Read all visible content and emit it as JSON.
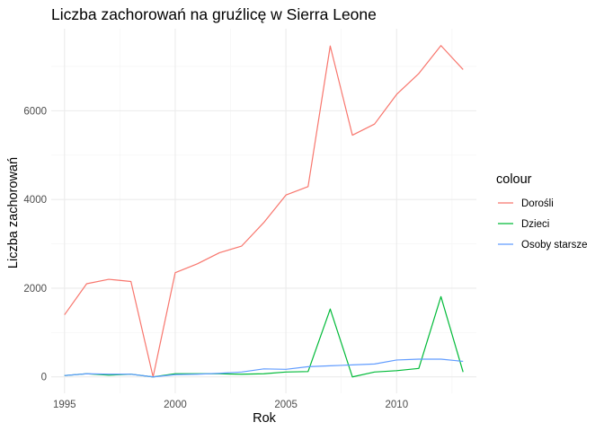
{
  "chart_data": {
    "type": "line",
    "title": "Liczba zachorowań na gruźlicę w Sierra Leone",
    "xlabel": "Rok",
    "ylabel": "Liczba zachorowań",
    "x": [
      1995,
      1996,
      1997,
      1998,
      1999,
      2000,
      2001,
      2002,
      2003,
      2004,
      2005,
      2006,
      2007,
      2008,
      2009,
      2010,
      2011,
      2012,
      2013
    ],
    "xlim": [
      1994.4,
      2013.6
    ],
    "ylim": [
      -370,
      7850
    ],
    "xticks": [
      1995,
      2000,
      2005,
      2010
    ],
    "yticks": [
      0,
      2000,
      4000,
      6000
    ],
    "grid": true,
    "legend": {
      "title": "colour",
      "placement": "right"
    },
    "series": [
      {
        "name": "Dorośli",
        "color": "#F8766D",
        "values": [
          1400,
          2100,
          2200,
          2150,
          0,
          2350,
          2550,
          2800,
          2950,
          3480,
          4100,
          4290,
          7460,
          5450,
          5700,
          6370,
          6840,
          7470,
          6930
        ]
      },
      {
        "name": "Dzieci",
        "color": "#00BA38",
        "values": [
          30,
          70,
          40,
          60,
          0,
          70,
          70,
          70,
          60,
          70,
          110,
          120,
          1530,
          0,
          110,
          140,
          190,
          1810,
          110
        ]
      },
      {
        "name": "Osoby starsze",
        "color": "#619CFF",
        "values": [
          30,
          70,
          60,
          60,
          0,
          50,
          60,
          80,
          110,
          180,
          170,
          230,
          250,
          270,
          290,
          380,
          400,
          400,
          350
        ]
      }
    ]
  }
}
